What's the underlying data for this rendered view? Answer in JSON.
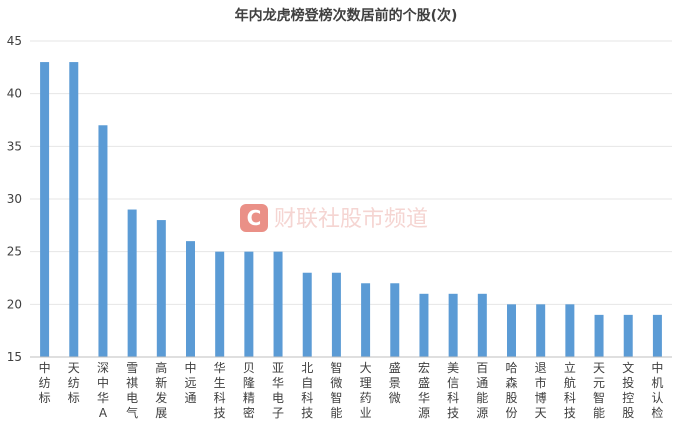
{
  "chart_data": {
    "type": "bar",
    "title": "年内龙虎榜登榜次数居前的个股(次)",
    "categories": [
      "中纺标",
      "天纺标",
      "深中华A",
      "雪祺电气",
      "高新发展",
      "中远通",
      "华生科技",
      "贝隆精密",
      "亚华电子",
      "北自科技",
      "智微智能",
      "大理药业",
      "盛景微",
      "宏盛华源",
      "美信科技",
      "百通能源",
      "哈森股份",
      "退市博天",
      "立航科技",
      "天元智能",
      "文投控股",
      "中机认检"
    ],
    "values": [
      43,
      43,
      37,
      29,
      28,
      26,
      25,
      25,
      25,
      23,
      23,
      22,
      22,
      21,
      21,
      21,
      20,
      20,
      20,
      19,
      19,
      19
    ],
    "ylim": [
      15,
      45
    ],
    "yticks": [
      15,
      20,
      25,
      30,
      35,
      40,
      45
    ],
    "xlabel": "",
    "ylabel": "",
    "grid": true,
    "legend": "none",
    "colors": {
      "bar": "#5b9bd5",
      "grid": "#e6e6e6",
      "text": "#404040"
    }
  },
  "watermark": {
    "logo_letter": "C",
    "text": "财联社股市频道"
  }
}
